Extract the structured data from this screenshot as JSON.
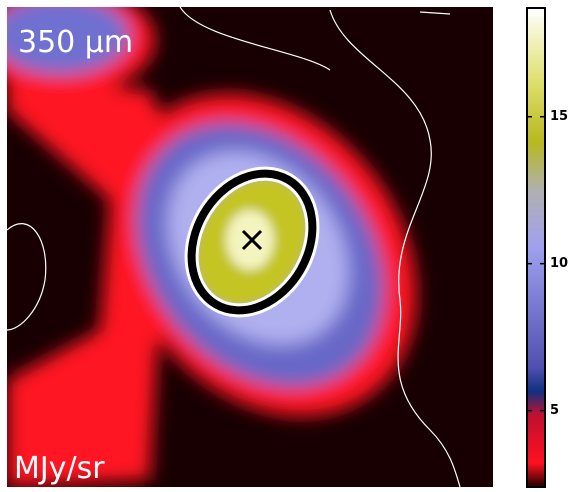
{
  "chart_data": {
    "type": "heatmap",
    "title": "350 μm",
    "colorbar_label": "MJy/sr",
    "zlim": [
      2.4,
      18.7
    ],
    "zticks": [
      5,
      10,
      15
    ]
  }
}
